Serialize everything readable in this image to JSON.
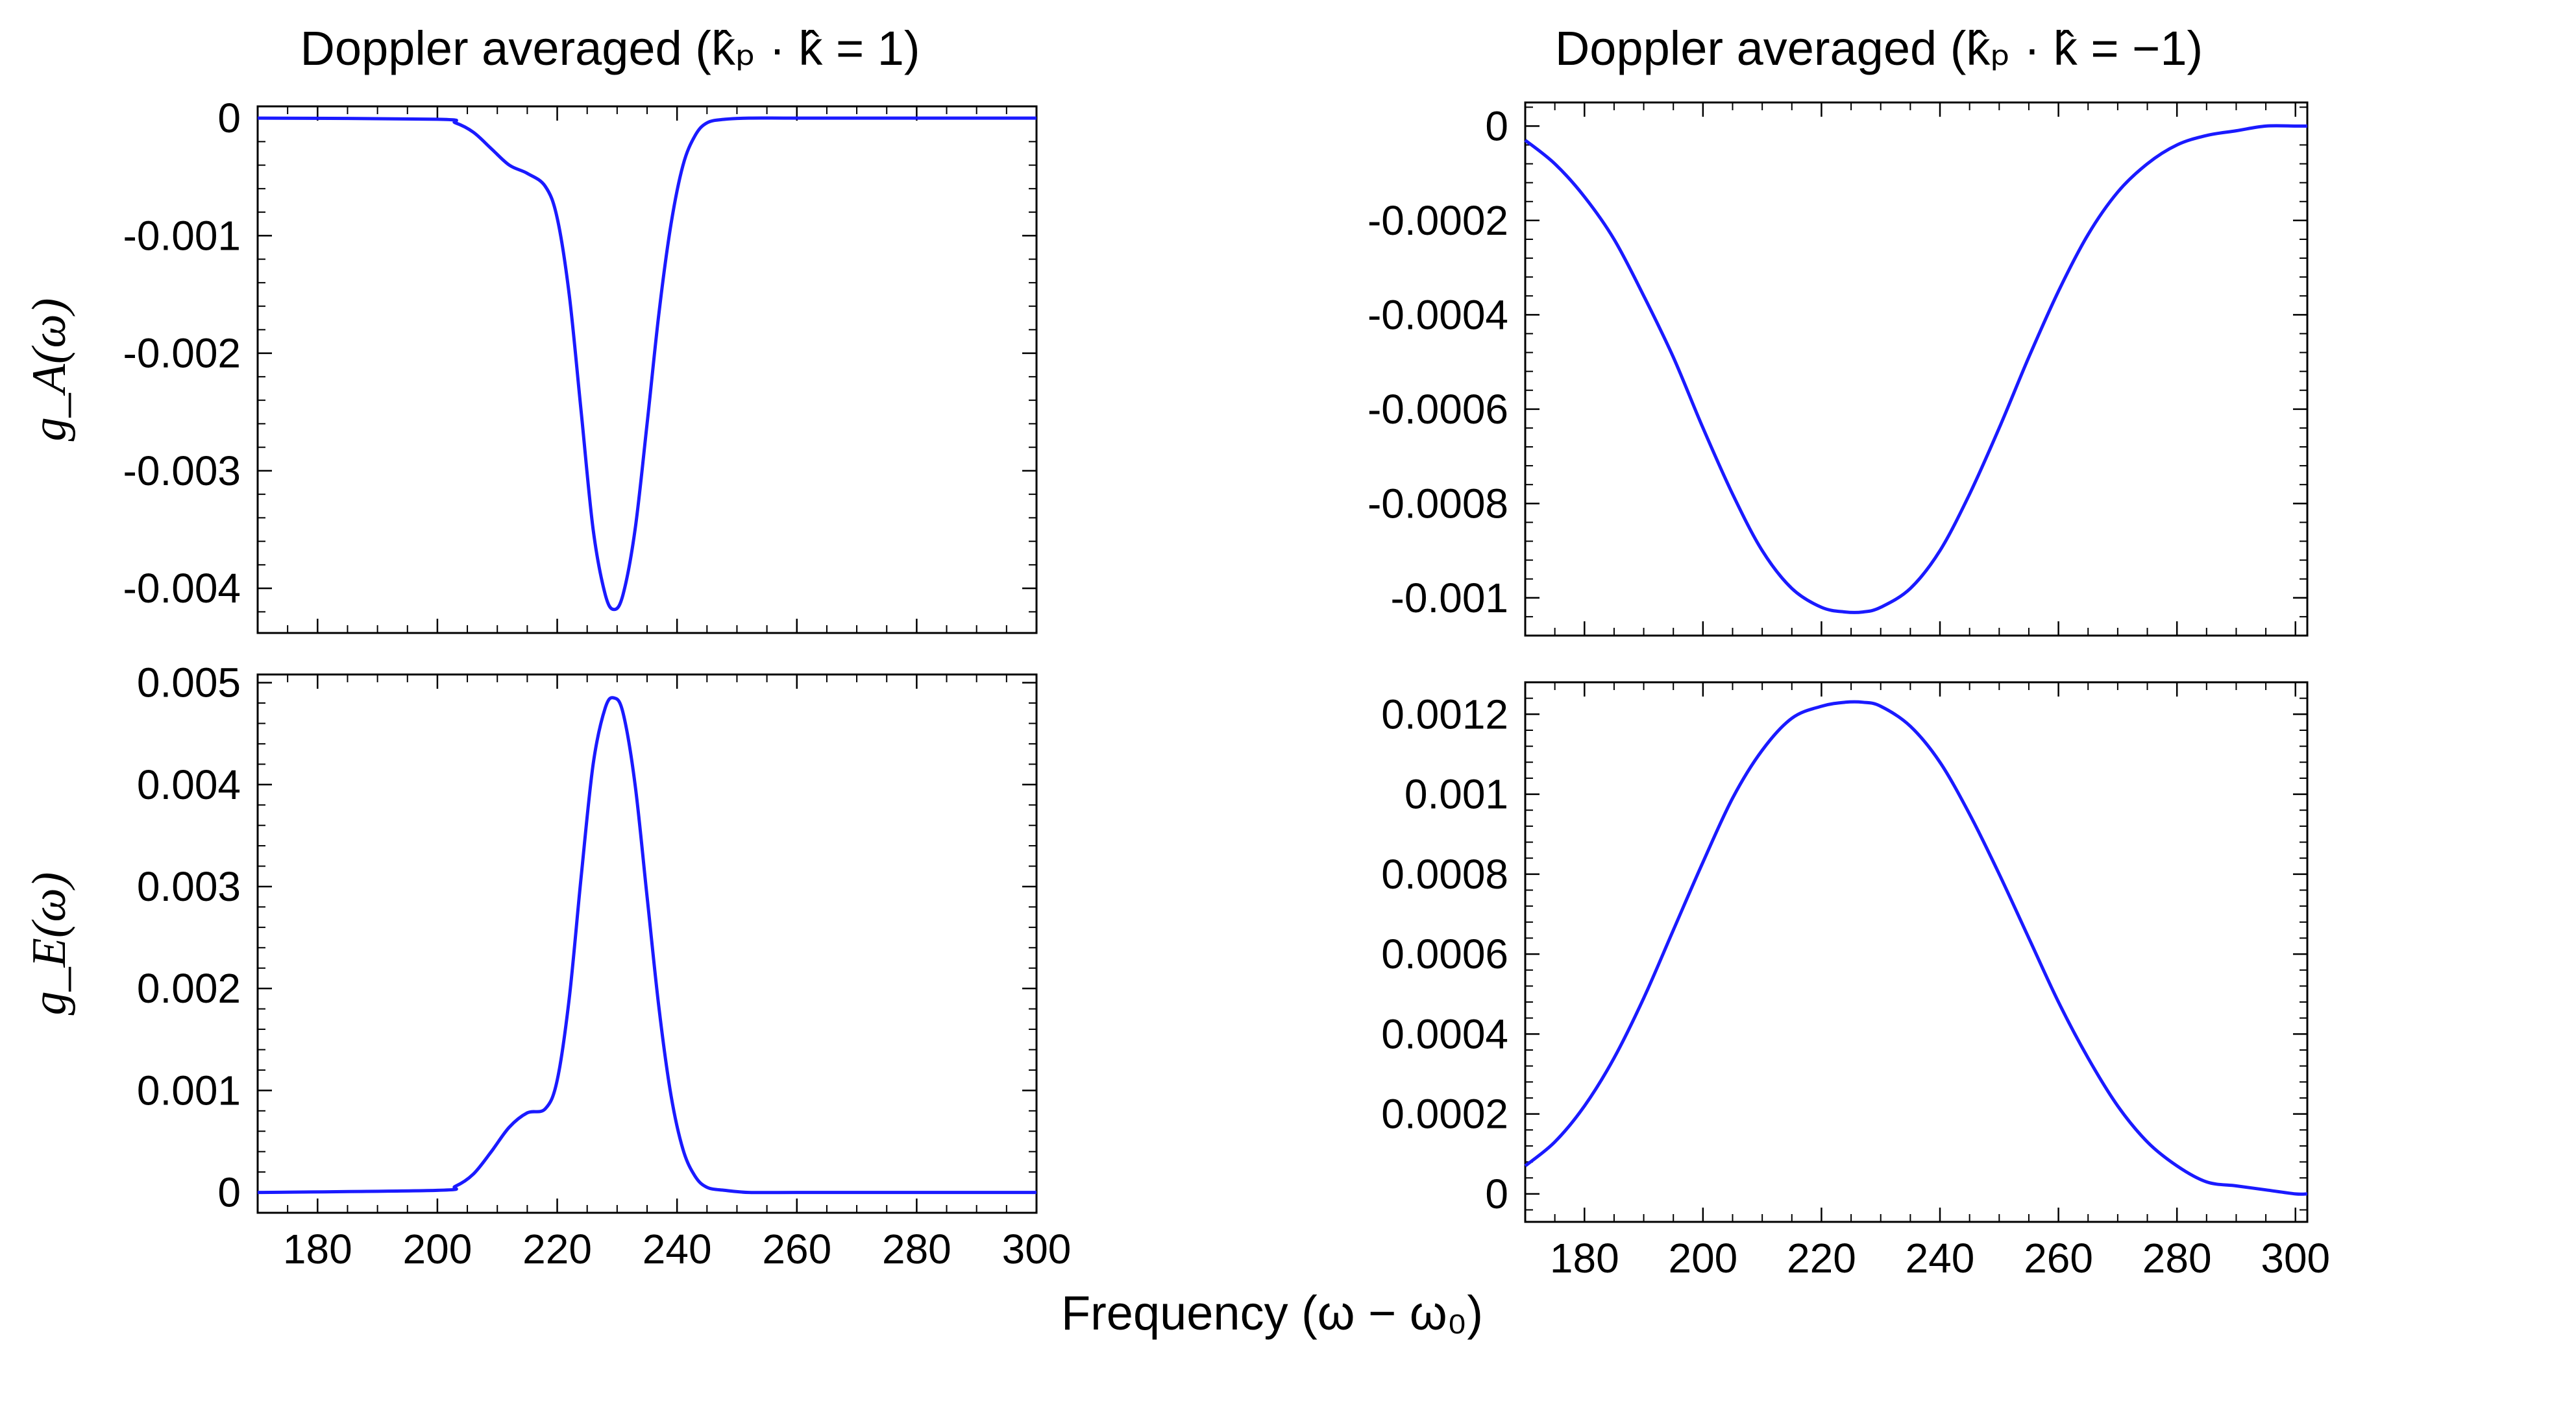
{
  "figure": {
    "shared_xlabel": "Frequency (ω − ω₀)",
    "colors": {
      "curve": "#1a1aff",
      "axes": "#000000"
    }
  },
  "chart_data": [
    {
      "id": "top-left",
      "type": "line",
      "title": "Doppler averaged (k̂ₚ · k̂ = 1)",
      "ylabel": "g_A(ω)",
      "xlim": [
        170,
        300
      ],
      "ylim": [
        -0.00438,
        0.0001
      ],
      "x_ticks": [
        180,
        200,
        220,
        240,
        260,
        280,
        300
      ],
      "x_tick_labels": [],
      "y_ticks": [
        0,
        -0.001,
        -0.002,
        -0.003,
        -0.004
      ],
      "y_tick_labels": [
        "0",
        "-0.001",
        "-0.002",
        "-0.003",
        "-0.004"
      ],
      "series": [
        {
          "x": [
            170,
            200,
            203,
            206,
            209,
            212,
            215,
            218,
            220,
            222,
            224,
            226,
            228,
            229.5,
            231,
            233,
            235,
            237,
            239,
            241,
            243,
            245,
            248,
            252,
            260,
            280,
            300
          ],
          "y": [
            0.0,
            -1e-05,
            -4e-05,
            -0.00012,
            -0.00026,
            -0.0004,
            -0.00047,
            -0.00058,
            -0.00085,
            -0.0015,
            -0.0025,
            -0.0035,
            -0.00405,
            -0.00418,
            -0.00405,
            -0.0035,
            -0.0026,
            -0.00165,
            -0.0009,
            -0.0004,
            -0.00015,
            -4e-05,
            -1e-05,
            0.0,
            0.0,
            0.0,
            0.0
          ]
        }
      ]
    },
    {
      "id": "bottom-left",
      "type": "line",
      "title": "",
      "ylabel": "g_E(ω)",
      "xlim": [
        170,
        300
      ],
      "ylim": [
        -0.0002,
        0.00508
      ],
      "x_ticks": [
        180,
        200,
        220,
        240,
        260,
        280,
        300
      ],
      "x_tick_labels": [
        "180",
        "200",
        "220",
        "240",
        "260",
        "280",
        "300"
      ],
      "y_ticks": [
        0,
        0.001,
        0.002,
        0.003,
        0.004,
        0.005
      ],
      "y_tick_labels": [
        "0",
        "0.001",
        "0.002",
        "0.003",
        "0.004",
        "0.005"
      ],
      "series": [
        {
          "x": [
            170,
            200,
            203,
            206,
            209,
            212,
            215,
            218,
            220,
            222,
            224,
            226,
            228,
            229.5,
            231,
            233,
            235,
            237,
            239,
            241,
            243,
            245,
            248,
            252,
            260,
            280,
            300
          ],
          "y": [
            0.0,
            2e-05,
            6e-05,
            0.00018,
            0.0004,
            0.00064,
            0.00078,
            0.00082,
            0.0011,
            0.0019,
            0.0031,
            0.0042,
            0.00475,
            0.00485,
            0.0047,
            0.004,
            0.0029,
            0.0018,
            0.00095,
            0.00042,
            0.00016,
            5e-05,
            2e-05,
            0.0,
            0.0,
            0.0,
            0.0
          ]
        }
      ]
    },
    {
      "id": "top-right",
      "type": "line",
      "title": "Doppler averaged (k̂ₚ · k̂ = −1)",
      "ylabel": "",
      "xlim": [
        170,
        302
      ],
      "ylim": [
        -0.00108,
        5e-05
      ],
      "x_ticks": [
        180,
        200,
        220,
        240,
        260,
        280,
        300
      ],
      "x_tick_labels": [],
      "y_ticks": [
        0,
        -0.0002,
        -0.0004,
        -0.0006,
        -0.0008,
        -0.001
      ],
      "y_tick_labels": [
        "0",
        "-0.0002",
        "-0.0004",
        "-0.0006",
        "-0.0008",
        "-0.001"
      ],
      "series": [
        {
          "x": [
            170,
            175,
            180,
            185,
            190,
            195,
            200,
            205,
            210,
            215,
            220,
            224,
            227,
            230,
            235,
            240,
            245,
            250,
            255,
            260,
            265,
            270,
            275,
            280,
            285,
            290,
            295,
            300,
            302
          ],
          "y": [
            -3e-05,
            -8e-05,
            -0.00015,
            -0.00024,
            -0.00036,
            -0.00049,
            -0.00064,
            -0.00078,
            -0.0009,
            -0.00098,
            -0.00102,
            -0.00103,
            -0.00103,
            -0.00102,
            -0.00098,
            -0.0009,
            -0.00078,
            -0.00064,
            -0.00049,
            -0.00035,
            -0.00023,
            -0.00014,
            -8e-05,
            -4e-05,
            -2e-05,
            -1e-05,
            0.0,
            0.0,
            0.0
          ]
        }
      ]
    },
    {
      "id": "bottom-right",
      "type": "line",
      "title": "",
      "ylabel": "",
      "xlim": [
        170,
        302
      ],
      "ylim": [
        -7e-05,
        0.00128
      ],
      "x_ticks": [
        180,
        200,
        220,
        240,
        260,
        280,
        300
      ],
      "x_tick_labels": [
        "180",
        "200",
        "220",
        "240",
        "260",
        "280",
        "300"
      ],
      "y_ticks": [
        0,
        0.0002,
        0.0004,
        0.0006,
        0.0008,
        0.001,
        0.0012
      ],
      "y_tick_labels": [
        "0",
        "0.0002",
        "0.0004",
        "0.0006",
        "0.0008",
        "0.001",
        "0.0012"
      ],
      "series": [
        {
          "x": [
            170,
            175,
            180,
            185,
            190,
            195,
            200,
            205,
            210,
            215,
            220,
            224,
            227,
            230,
            235,
            240,
            245,
            250,
            255,
            260,
            265,
            270,
            275,
            280,
            285,
            290,
            295,
            300,
            302
          ],
          "y": [
            7e-05,
            0.00013,
            0.00022,
            0.00034,
            0.00049,
            0.00066,
            0.00083,
            0.00099,
            0.00111,
            0.00119,
            0.00122,
            0.00123,
            0.00123,
            0.00122,
            0.00117,
            0.00108,
            0.00095,
            0.0008,
            0.00064,
            0.00048,
            0.00034,
            0.00022,
            0.00013,
            7e-05,
            3e-05,
            2e-05,
            1e-05,
            0.0,
            0.0
          ]
        }
      ]
    }
  ]
}
